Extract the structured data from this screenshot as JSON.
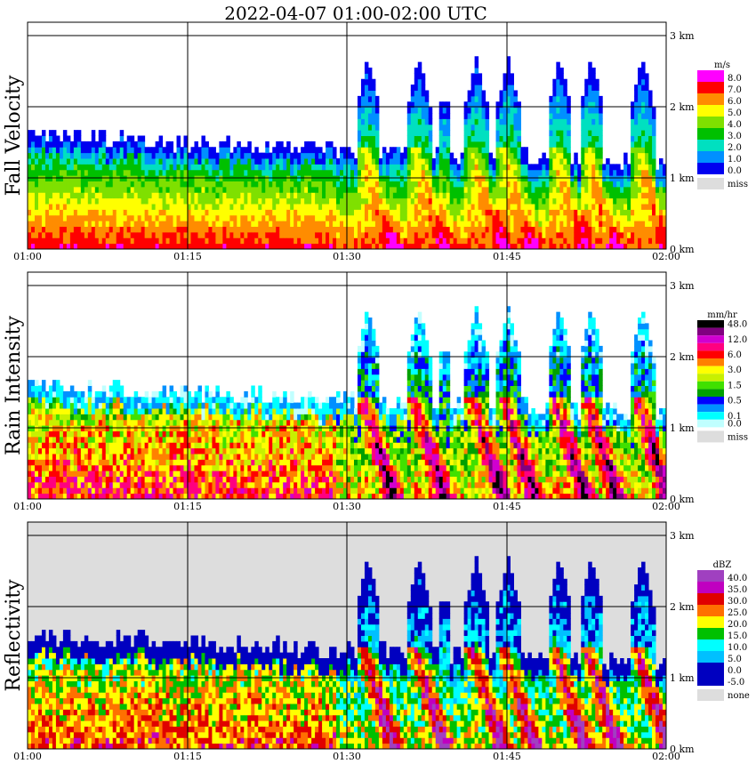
{
  "title": "2022-04-07   01:00-02:00 UTC",
  "chart_data": [
    {
      "type": "heatmap",
      "ylabel": "Fall Velocity",
      "x_ticks": [
        "01:00",
        "01:15",
        "01:30",
        "01:45",
        "02:00"
      ],
      "y_ticks": [
        "0 km",
        "1 km",
        "2 km",
        "3 km"
      ],
      "xlim": [
        "01:00",
        "02:00"
      ],
      "ylim_km": [
        0,
        3.2
      ],
      "grid": true,
      "legend_unit": "m/s",
      "legend": [
        {
          "label": "8.0",
          "color": "#ff00ff"
        },
        {
          "label": "7.0",
          "color": "#ff0000"
        },
        {
          "label": "6.0",
          "color": "#ff8c00"
        },
        {
          "label": "5.0",
          "color": "#ffff00"
        },
        {
          "label": "4.0",
          "color": "#7fe000"
        },
        {
          "label": "3.0",
          "color": "#00c000"
        },
        {
          "label": "2.0",
          "color": "#00e0c0"
        },
        {
          "label": "1.0",
          "color": "#0090ff"
        },
        {
          "label": "0.0",
          "color": "#0000f0"
        },
        {
          "label": "miss",
          "color": "#dddddd"
        }
      ]
    },
    {
      "type": "heatmap",
      "ylabel": "Rain Intensity",
      "x_ticks": [
        "01:00",
        "01:15",
        "01:30",
        "01:45",
        "02:00"
      ],
      "y_ticks": [
        "0 km",
        "1 km",
        "2 km",
        "3 km"
      ],
      "xlim": [
        "01:00",
        "02:00"
      ],
      "ylim_km": [
        0,
        3.2
      ],
      "grid": true,
      "legend_unit": "mm/hr",
      "legend": [
        {
          "label": "48.0",
          "color": "#000000"
        },
        {
          "label": "",
          "color": "#800080"
        },
        {
          "label": "12.0",
          "color": "#d000d0"
        },
        {
          "label": "",
          "color": "#ff0080"
        },
        {
          "label": "6.0",
          "color": "#ff0000"
        },
        {
          "label": "",
          "color": "#ff8000"
        },
        {
          "label": "3.0",
          "color": "#ffff00"
        },
        {
          "label": "",
          "color": "#c8f000"
        },
        {
          "label": "1.5",
          "color": "#40e000"
        },
        {
          "label": "",
          "color": "#00a000"
        },
        {
          "label": "0.5",
          "color": "#0000ff"
        },
        {
          "label": "",
          "color": "#0090ff"
        },
        {
          "label": "0.1",
          "color": "#00ffff"
        },
        {
          "label": "0.0",
          "color": "#c0ffff"
        },
        {
          "label": "miss",
          "color": "#dddddd"
        }
      ]
    },
    {
      "type": "heatmap",
      "ylabel": "Reflectivity",
      "x_ticks": [
        "01:00",
        "01:15",
        "01:30",
        "01:45",
        "02:00"
      ],
      "y_ticks": [
        "0 km",
        "1 km",
        "2 km",
        "3 km"
      ],
      "xlim": [
        "01:00",
        "02:00"
      ],
      "ylim_km": [
        0,
        3.2
      ],
      "grid": true,
      "legend_unit": "dBZ",
      "legend": [
        {
          "label": "40.0",
          "color": "#a040c0"
        },
        {
          "label": "35.0",
          "color": "#c000c0"
        },
        {
          "label": "30.0",
          "color": "#e00000"
        },
        {
          "label": "25.0",
          "color": "#ff7000"
        },
        {
          "label": "20.0",
          "color": "#ffff00"
        },
        {
          "label": "15.0",
          "color": "#00c000"
        },
        {
          "label": "10.0",
          "color": "#00ffff"
        },
        {
          "label": "5.0",
          "color": "#00c0ff"
        },
        {
          "label": "0.0",
          "color": "#0000c0"
        },
        {
          "label": "-5.0",
          "color": "#0000c0"
        },
        {
          "label": "none",
          "color": "#dddddd"
        }
      ]
    }
  ]
}
